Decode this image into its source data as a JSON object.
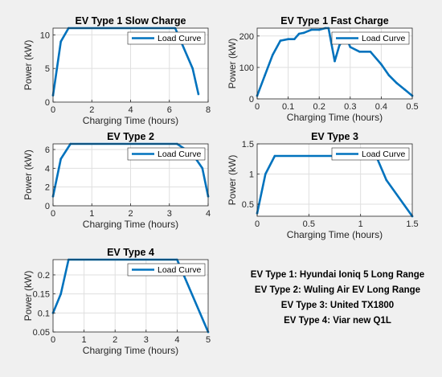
{
  "figure": {
    "background": "#f0f0f0",
    "line_color": "#0072bd",
    "notes": [
      "EV Type 1: Hyundai Ioniq 5 Long Range",
      "EV Type 2: Wuling Air EV Long Range",
      "EV Type 3: United TX1800",
      "EV Type 4: Viar new Q1L"
    ]
  },
  "chart_data": [
    {
      "type": "line",
      "title": "EV Type 1 Slow Charge",
      "xlabel": "Charging Time (hours)",
      "ylabel": "Power (kW)",
      "xlim": [
        0,
        8
      ],
      "ylim": [
        0,
        11
      ],
      "xticks": [
        0,
        2,
        4,
        6,
        8
      ],
      "yticks": [
        0,
        5,
        10
      ],
      "grid": true,
      "legend_position": "top-right",
      "series": [
        {
          "name": "Load Curve",
          "x": [
            0,
            0.4,
            0.8,
            6.3,
            7.2,
            7.5
          ],
          "y": [
            1,
            9,
            11,
            11,
            5,
            1.2
          ]
        }
      ]
    },
    {
      "type": "line",
      "title": "EV Type 1 Fast Charge",
      "xlabel": "Charging Time (hours)",
      "ylabel": "Power (kW)",
      "xlim": [
        0,
        0.5
      ],
      "ylim": [
        0,
        225
      ],
      "xticks": [
        0,
        0.1,
        0.2,
        0.3,
        0.4,
        0.5
      ],
      "yticks": [
        0,
        100,
        200
      ],
      "grid": true,
      "legend_position": "top-right",
      "series": [
        {
          "name": "Load Curve",
          "x": [
            0,
            0.025,
            0.05,
            0.075,
            0.1,
            0.12,
            0.135,
            0.15,
            0.175,
            0.2,
            0.22,
            0.23,
            0.25,
            0.265,
            0.285,
            0.3,
            0.33,
            0.365,
            0.4,
            0.425,
            0.45,
            0.475,
            0.5
          ],
          "y": [
            10,
            75,
            140,
            185,
            190,
            190,
            207,
            210,
            220,
            220,
            225,
            225,
            120,
            170,
            200,
            165,
            150,
            150,
            110,
            75,
            50,
            30,
            10
          ]
        }
      ]
    },
    {
      "type": "line",
      "title": "EV Type 2",
      "xlabel": "Charging Time (hours)",
      "ylabel": "Power (kW)",
      "xlim": [
        0,
        4
      ],
      "ylim": [
        0,
        6.6
      ],
      "xticks": [
        0,
        1,
        2,
        3,
        4
      ],
      "yticks": [
        0,
        2,
        4,
        6
      ],
      "grid": true,
      "legend_position": "top-right",
      "series": [
        {
          "name": "Load Curve",
          "x": [
            0,
            0.2,
            0.45,
            3.2,
            3.6,
            3.85,
            4.0
          ],
          "y": [
            1,
            5,
            6.6,
            6.6,
            5.5,
            4,
            1
          ]
        }
      ]
    },
    {
      "type": "line",
      "title": "EV Type 3",
      "xlabel": "Charging Time (hours)",
      "ylabel": "Power (kW)",
      "xlim": [
        0,
        1.5
      ],
      "ylim": [
        0.3,
        1.5
      ],
      "xticks": [
        0,
        0.5,
        1,
        1.5
      ],
      "yticks": [
        0.5,
        1,
        1.5
      ],
      "grid": true,
      "legend_position": "top-right",
      "series": [
        {
          "name": "Load Curve",
          "x": [
            0,
            0.08,
            0.17,
            1.15,
            1.25,
            1.5
          ],
          "y": [
            0.35,
            1.0,
            1.3,
            1.3,
            0.9,
            0.3
          ]
        }
      ]
    },
    {
      "type": "line",
      "title": "EV Type 4",
      "xlabel": "Charging Time (hours)",
      "ylabel": "Power (kW)",
      "xlim": [
        0,
        5
      ],
      "ylim": [
        0.05,
        0.24
      ],
      "xticks": [
        0,
        1,
        2,
        3,
        4,
        5
      ],
      "yticks": [
        0.05,
        0.1,
        0.15,
        0.2
      ],
      "grid": true,
      "legend_position": "top-right",
      "series": [
        {
          "name": "Load Curve",
          "x": [
            0,
            0.25,
            0.5,
            4.0,
            5.0
          ],
          "y": [
            0.1,
            0.15,
            0.24,
            0.24,
            0.05
          ]
        }
      ]
    }
  ]
}
